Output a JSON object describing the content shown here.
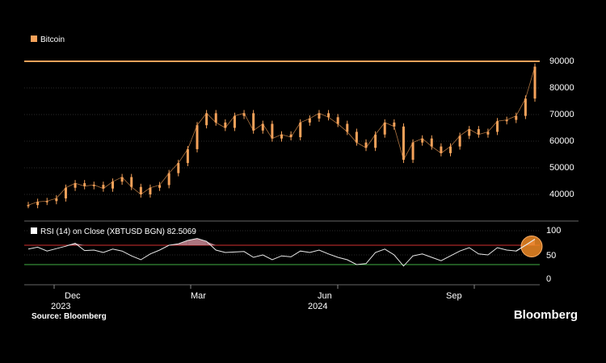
{
  "chart_data": [
    {
      "type": "candlestick",
      "legend": "Bitcoin",
      "y_ticks": [
        "90000",
        "80000",
        "70000",
        "60000",
        "50000",
        "40000"
      ],
      "y_tick_values": [
        90000,
        80000,
        70000,
        60000,
        50000,
        40000
      ],
      "ylim": [
        32000,
        92000
      ],
      "x_month_labels": [
        "Dec",
        "Mar",
        "Jun",
        "Sep"
      ],
      "x_year_labels": [
        "2023",
        "2024"
      ],
      "reference_line": 90000,
      "series": [
        {
          "points": [
            [
              "2023-10-30",
              36000
            ],
            [
              "2023-11-06",
              37200
            ],
            [
              "2023-11-13",
              37500
            ],
            [
              "2023-11-20",
              38500
            ],
            [
              "2023-11-27",
              42500
            ],
            [
              "2023-12-04",
              44200
            ],
            [
              "2023-12-11",
              43100
            ],
            [
              "2023-12-18",
              43600
            ],
            [
              "2023-12-25",
              42200
            ],
            [
              "2024-01-01",
              44800
            ],
            [
              "2024-01-08",
              46500
            ],
            [
              "2024-01-15",
              42800
            ],
            [
              "2024-01-22",
              40000
            ],
            [
              "2024-01-29",
              42500
            ],
            [
              "2024-02-05",
              43500
            ],
            [
              "2024-02-12",
              48000
            ],
            [
              "2024-02-19",
              51800
            ],
            [
              "2024-02-26",
              57000
            ],
            [
              "2024-03-04",
              66000
            ],
            [
              "2024-03-11",
              70500
            ],
            [
              "2024-03-18",
              67000
            ],
            [
              "2024-03-25",
              65000
            ],
            [
              "2024-04-01",
              69500
            ],
            [
              "2024-04-08",
              70500
            ],
            [
              "2024-04-15",
              64000
            ],
            [
              "2024-04-22",
              66500
            ],
            [
              "2024-04-29",
              61000
            ],
            [
              "2024-05-06",
              62500
            ],
            [
              "2024-05-13",
              61500
            ],
            [
              "2024-05-20",
              67000
            ],
            [
              "2024-05-27",
              68500
            ],
            [
              "2024-06-03",
              70500
            ],
            [
              "2024-06-10",
              69000
            ],
            [
              "2024-06-17",
              66500
            ],
            [
              "2024-06-24",
              63500
            ],
            [
              "2024-07-01",
              59500
            ],
            [
              "2024-07-08",
              57500
            ],
            [
              "2024-07-15",
              62500
            ],
            [
              "2024-07-22",
              67000
            ],
            [
              "2024-07-29",
              65500
            ],
            [
              "2024-08-05",
              53000
            ],
            [
              "2024-08-12",
              59500
            ],
            [
              "2024-08-19",
              61000
            ],
            [
              "2024-08-26",
              58000
            ],
            [
              "2024-09-02",
              55500
            ],
            [
              "2024-09-09",
              58000
            ],
            [
              "2024-09-16",
              62000
            ],
            [
              "2024-09-23",
              64500
            ],
            [
              "2024-09-30",
              62500
            ],
            [
              "2024-10-07",
              63500
            ],
            [
              "2024-10-14",
              67500
            ],
            [
              "2024-10-21",
              68000
            ],
            [
              "2024-10-28",
              69500
            ],
            [
              "2024-11-04",
              76000
            ],
            [
              "2024-11-11",
              88000
            ]
          ]
        }
      ]
    },
    {
      "type": "line",
      "legend": "RSI (14)  on Close (XBTUSD BGN) 82.5069",
      "y_ticks": [
        "100",
        "50",
        "0"
      ],
      "y_tick_values": [
        100,
        50,
        0
      ],
      "ylim": [
        -5,
        108
      ],
      "reference_lines": [
        70,
        30
      ],
      "series": [
        {
          "points": [
            [
              "2023-10-30",
              62
            ],
            [
              "2023-11-06",
              66
            ],
            [
              "2023-11-13",
              58
            ],
            [
              "2023-11-20",
              63
            ],
            [
              "2023-11-27",
              68
            ],
            [
              "2023-12-04",
              74
            ],
            [
              "2023-12-11",
              59
            ],
            [
              "2023-12-18",
              60
            ],
            [
              "2023-12-25",
              55
            ],
            [
              "2024-01-01",
              62
            ],
            [
              "2024-01-08",
              58
            ],
            [
              "2024-01-15",
              48
            ],
            [
              "2024-01-22",
              40
            ],
            [
              "2024-01-29",
              52
            ],
            [
              "2024-02-05",
              60
            ],
            [
              "2024-02-12",
              70
            ],
            [
              "2024-02-19",
              73
            ],
            [
              "2024-02-26",
              80
            ],
            [
              "2024-03-04",
              84
            ],
            [
              "2024-03-11",
              78
            ],
            [
              "2024-03-18",
              60
            ],
            [
              "2024-03-25",
              55
            ],
            [
              "2024-04-01",
              56
            ],
            [
              "2024-04-08",
              57
            ],
            [
              "2024-04-15",
              45
            ],
            [
              "2024-04-22",
              50
            ],
            [
              "2024-04-29",
              40
            ],
            [
              "2024-05-06",
              48
            ],
            [
              "2024-05-13",
              46
            ],
            [
              "2024-05-20",
              58
            ],
            [
              "2024-05-27",
              55
            ],
            [
              "2024-06-03",
              60
            ],
            [
              "2024-06-10",
              52
            ],
            [
              "2024-06-17",
              45
            ],
            [
              "2024-06-24",
              40
            ],
            [
              "2024-07-01",
              30
            ],
            [
              "2024-07-08",
              32
            ],
            [
              "2024-07-15",
              55
            ],
            [
              "2024-07-22",
              62
            ],
            [
              "2024-07-29",
              50
            ],
            [
              "2024-08-05",
              27
            ],
            [
              "2024-08-12",
              48
            ],
            [
              "2024-08-19",
              52
            ],
            [
              "2024-08-26",
              45
            ],
            [
              "2024-09-02",
              38
            ],
            [
              "2024-09-09",
              48
            ],
            [
              "2024-09-16",
              58
            ],
            [
              "2024-09-23",
              65
            ],
            [
              "2024-09-30",
              52
            ],
            [
              "2024-10-07",
              50
            ],
            [
              "2024-10-14",
              65
            ],
            [
              "2024-10-21",
              60
            ],
            [
              "2024-10-28",
              58
            ],
            [
              "2024-11-04",
              70
            ],
            [
              "2024-11-11",
              82.5
            ]
          ]
        }
      ]
    }
  ],
  "colors": {
    "price": "#f5a25a",
    "reference_line": "#f5a25a",
    "rsi": "#e8e8e8",
    "overbought": "#d32f2f",
    "oversold": "#3fb043",
    "overbought_fill": "#c98a95",
    "highlight_circle": "#f08a24",
    "grid": "#555555"
  },
  "footer": {
    "source": "Source: Bloomberg",
    "brand": "Bloomberg"
  }
}
